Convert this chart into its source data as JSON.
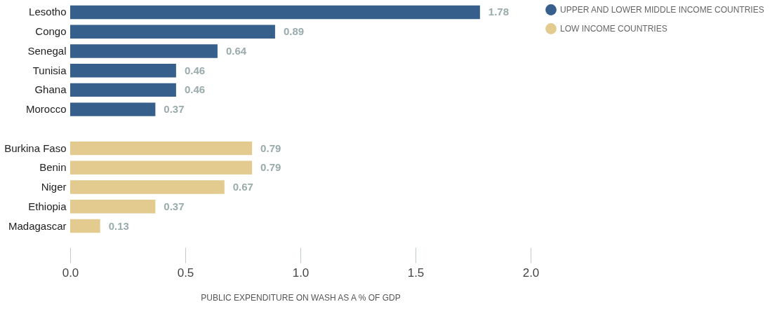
{
  "chart_data": {
    "type": "bar",
    "orientation": "horizontal",
    "categories": [
      "Lesotho",
      "Congo",
      "Senegal",
      "Tunisia",
      "Ghana",
      "Morocco",
      null,
      "Burkina Faso",
      "Benin",
      "Niger",
      "Ethiopia",
      "Madagascar"
    ],
    "series": [
      {
        "name": "UPPER AND LOWER MIDDLE INCOME COUNTRIES",
        "color": "#365f8c",
        "values": [
          1.78,
          0.89,
          0.64,
          0.46,
          0.46,
          0.37,
          null,
          null,
          null,
          null,
          null,
          null
        ]
      },
      {
        "name": "LOW INCOME COUNTRIES",
        "color": "#e3ca8e",
        "values": [
          null,
          null,
          null,
          null,
          null,
          null,
          null,
          0.79,
          0.79,
          0.67,
          0.37,
          0.13
        ]
      }
    ],
    "xlabel": "PUBLIC EXPENDITURE ON WASH AS A % OF GDP",
    "xlim": [
      0,
      2
    ],
    "xticks": [
      {
        "value": 0,
        "label": "0.0"
      },
      {
        "value": 0.5,
        "label": "0.5"
      },
      {
        "value": 1,
        "label": "1.0"
      },
      {
        "value": 1.5,
        "label": "1.5"
      },
      {
        "value": 2,
        "label": "2.0"
      }
    ],
    "data_labels": true,
    "legend": "top right",
    "grid": false
  }
}
